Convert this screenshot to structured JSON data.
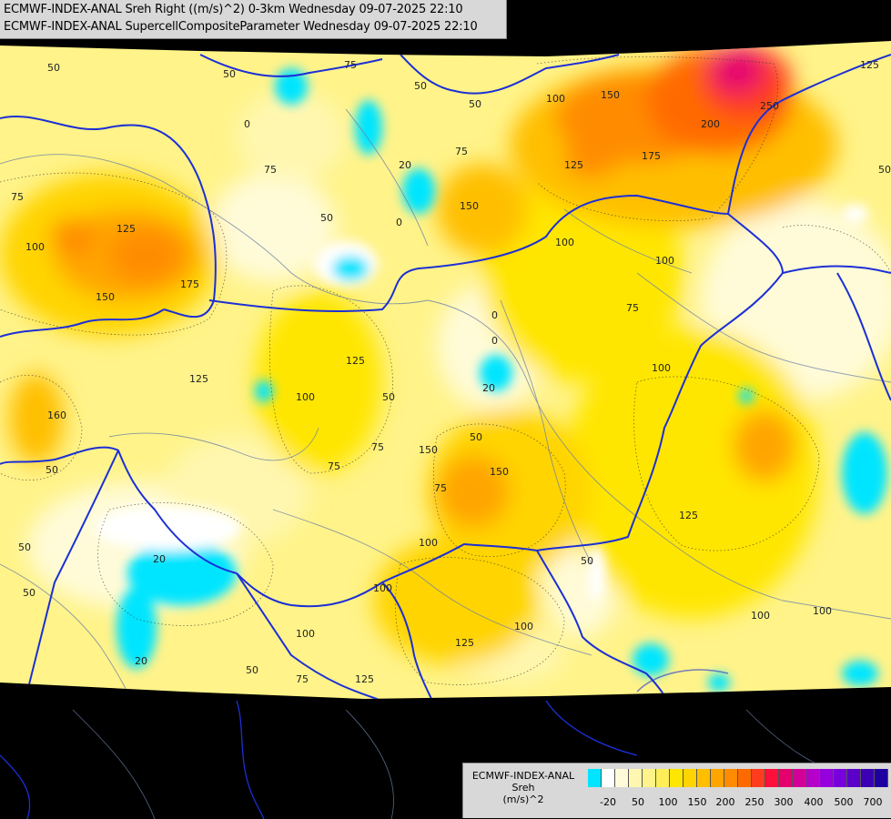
{
  "header": {
    "line1": "ECMWF-INDEX-ANAL Sreh Right ((m/s)^2) 0-3km Wednesday 09-07-2025 22:10",
    "line2": "ECMWF-INDEX-ANAL SupercellCompositeParameter Wednesday 09-07-2025 22:10"
  },
  "legend": {
    "title": "ECMWF-INDEX-ANAL",
    "variable": "Sreh",
    "unit": "(m/s)^2",
    "colors": [
      "#00e5ff",
      "#ffffff",
      "#fffbd8",
      "#fff7b0",
      "#fff389",
      "#ffee55",
      "#ffe600",
      "#ffd400",
      "#ffbf00",
      "#ffa500",
      "#ff8c00",
      "#ff6a00",
      "#ff3c1e",
      "#ff0f3c",
      "#e6006e",
      "#d20096",
      "#b400c8",
      "#9600dc",
      "#7800dc",
      "#5a00c8",
      "#3c00b4",
      "#1e00a0"
    ],
    "ticks": [
      "-20",
      "50",
      "100",
      "150",
      "200",
      "250",
      "300",
      "400",
      "500",
      "700"
    ]
  },
  "contour_labels": [
    {
      "v": "50"
    },
    {
      "v": "50"
    },
    {
      "v": "75"
    },
    {
      "v": "50"
    },
    {
      "v": "50"
    },
    {
      "v": "100"
    },
    {
      "v": "150"
    },
    {
      "v": "250"
    },
    {
      "v": "125"
    },
    {
      "v": "0"
    },
    {
      "v": "75"
    },
    {
      "v": "75"
    },
    {
      "v": "20"
    },
    {
      "v": "0"
    },
    {
      "v": "125"
    },
    {
      "v": "175"
    },
    {
      "v": "200"
    },
    {
      "v": "75"
    },
    {
      "v": "50"
    },
    {
      "v": "100"
    },
    {
      "v": "125"
    },
    {
      "v": "150"
    },
    {
      "v": "175"
    },
    {
      "v": "150"
    },
    {
      "v": "100"
    },
    {
      "v": "100"
    },
    {
      "v": "50"
    },
    {
      "v": "0"
    },
    {
      "v": "125"
    },
    {
      "v": "75"
    },
    {
      "v": "100"
    },
    {
      "v": "125"
    },
    {
      "v": "20"
    },
    {
      "v": "0"
    },
    {
      "v": "50"
    },
    {
      "v": "100"
    },
    {
      "v": "160"
    },
    {
      "v": "50"
    },
    {
      "v": "75"
    },
    {
      "v": "150"
    },
    {
      "v": "150"
    },
    {
      "v": "75"
    },
    {
      "v": "125"
    },
    {
      "v": "20"
    },
    {
      "v": "50"
    },
    {
      "v": "50"
    },
    {
      "v": "100"
    },
    {
      "v": "50"
    },
    {
      "v": "100"
    },
    {
      "v": "125"
    },
    {
      "v": "125"
    },
    {
      "v": "75"
    },
    {
      "v": "100"
    },
    {
      "v": "100"
    },
    {
      "v": "100"
    },
    {
      "v": "50"
    },
    {
      "v": "20"
    },
    {
      "v": "75"
    },
    {
      "v": "100"
    },
    {
      "v": "50"
    }
  ]
}
